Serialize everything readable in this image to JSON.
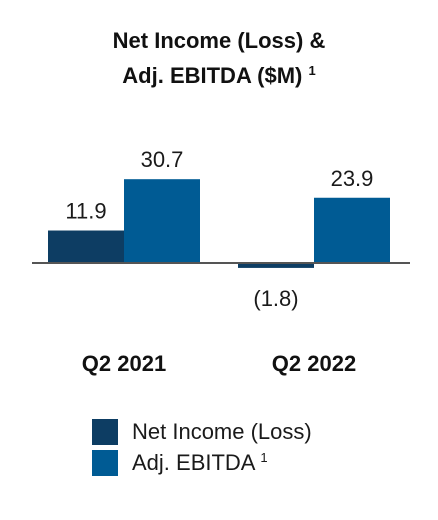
{
  "chart_data": {
    "type": "bar",
    "title_line1": "Net Income  (Loss) &",
    "title_line2": "Adj. EBITDA ($M)",
    "footnote_mark": "1",
    "categories": [
      "Q2 2021",
      "Q2 2022"
    ],
    "series": [
      {
        "name": "Net Income (Loss)",
        "values": [
          11.9,
          -1.8
        ],
        "labels": [
          "11.9",
          "(1.8)"
        ],
        "color": "#0d3d63"
      },
      {
        "name": "Adj. EBITDA",
        "name_suffix": "1",
        "values": [
          30.7,
          23.9
        ],
        "labels": [
          "30.7",
          "23.9"
        ],
        "color": "#005b94"
      }
    ],
    "axis_color": "#555555",
    "legend_position": "bottom"
  }
}
